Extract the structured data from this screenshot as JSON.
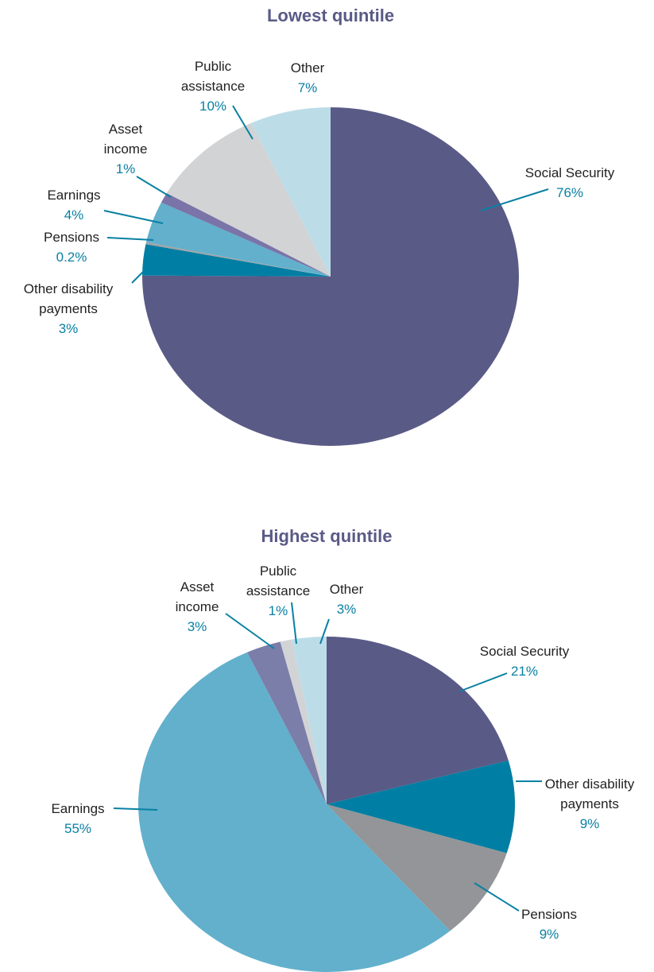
{
  "chart_data": [
    {
      "type": "pie",
      "title": "Lowest quintile",
      "categories": [
        "Social Security",
        "Other disability payments",
        "Pensions",
        "Earnings",
        "Asset income",
        "Public assistance",
        "Other"
      ],
      "values": [
        76,
        3,
        0.2,
        4,
        1,
        10,
        7
      ],
      "value_labels": [
        "76%",
        "3%",
        "0.2%",
        "4%",
        "1%",
        "10%",
        "7%"
      ],
      "colors": [
        "#5a5a87",
        "#007ea3",
        "#a0a2a5",
        "#62b0cc",
        "#7a74a8",
        "#d2d3d5",
        "#bcdde8"
      ]
    },
    {
      "type": "pie",
      "title": "Highest quintile",
      "categories": [
        "Social Security",
        "Other disability payments",
        "Pensions",
        "Earnings",
        "Asset income",
        "Public assistance",
        "Other"
      ],
      "values": [
        21,
        9,
        9,
        55,
        3,
        1,
        3
      ],
      "value_labels": [
        "21%",
        "9%",
        "9%",
        "55%",
        "3%",
        "1%",
        "3%"
      ],
      "colors": [
        "#5a5a87",
        "#007ea3",
        "#939598",
        "#62b0cc",
        "#7a7ea8",
        "#d2d3d5",
        "#bcdde8"
      ]
    }
  ]
}
